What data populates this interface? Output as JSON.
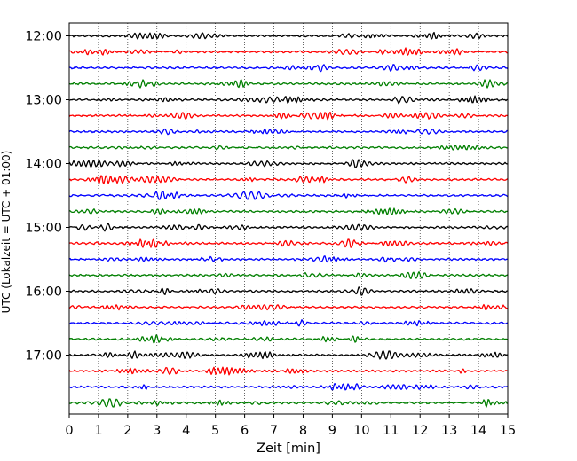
{
  "chart_data": {
    "type": "line",
    "title": "",
    "xlabel": "Zeit  [min]",
    "ylabel": "UTC (Lokalzeit = UTC + 01:00)",
    "xlim": [
      0,
      15
    ],
    "x_ticks": [
      0,
      1,
      2,
      3,
      4,
      5,
      6,
      7,
      8,
      9,
      10,
      11,
      12,
      13,
      14,
      15
    ],
    "x_tick_labels": [
      "0",
      "1",
      "2",
      "3",
      "4",
      "5",
      "6",
      "7",
      "8",
      "9",
      "10",
      "11",
      "12",
      "13",
      "14",
      "15"
    ],
    "y_tick_labels": [
      "12:00",
      "13:00",
      "14:00",
      "15:00",
      "16:00",
      "17:00"
    ],
    "grid": "vertical dotted lines at each minute",
    "trace_start": "12:00",
    "trace_interval_minutes": 15,
    "trace_count": 24,
    "trace_colors": [
      "#000000",
      "#ff0000",
      "#0000ff",
      "#007f00"
    ]
  }
}
